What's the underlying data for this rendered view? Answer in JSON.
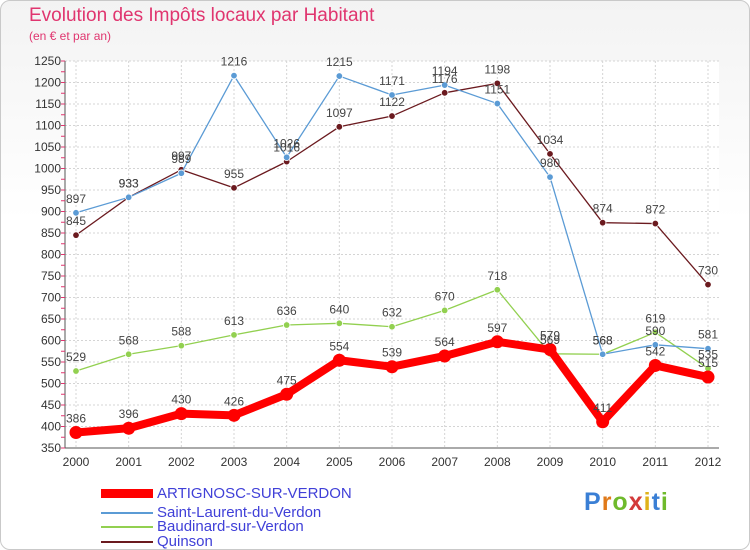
{
  "title": "Evolution des Impôts locaux par Habitant",
  "subtitle": "(en € et par an)",
  "logo": {
    "text": "Proxiti",
    "letter_colors": [
      "#3a7fd5",
      "#e07a1a",
      "#6fba2c",
      "#d33a3a",
      "#e0b31a",
      "#3a7fd5",
      "#6fba2c"
    ]
  },
  "chart_data": {
    "type": "line",
    "x": [
      "2000",
      "2001",
      "2002",
      "2003",
      "2004",
      "2005",
      "2006",
      "2007",
      "2008",
      "2009",
      "2010",
      "2011",
      "2012"
    ],
    "ylim": [
      350,
      1250
    ],
    "yticks": [
      350,
      400,
      450,
      500,
      550,
      600,
      650,
      700,
      750,
      800,
      850,
      900,
      950,
      1000,
      1050,
      1100,
      1150,
      1200,
      1250
    ],
    "grid": true,
    "legend_position": "bottom-left",
    "series": [
      {
        "name": "ARTIGNOSC-SUR-VERDON",
        "color": "#ff0000",
        "values": [
          386,
          396,
          430,
          426,
          475,
          554,
          539,
          564,
          597,
          579,
          411,
          542,
          515
        ]
      },
      {
        "name": "Saint-Laurent-du-Verdon",
        "color": "#5b9bd5",
        "values": [
          897,
          933,
          989,
          1216,
          1026,
          1215,
          1171,
          1194,
          1151,
          980,
          568,
          590,
          581
        ]
      },
      {
        "name": "Baudinard-sur-Verdon",
        "color": "#92d050",
        "values": [
          529,
          568,
          588,
          613,
          636,
          640,
          632,
          670,
          718,
          569,
          568,
          619,
          535
        ]
      },
      {
        "name": "Quinson",
        "color": "#6b1a1f",
        "values": [
          845,
          933,
          997,
          955,
          1016,
          1097,
          1122,
          1176,
          1198,
          1034,
          874,
          872,
          730
        ]
      }
    ]
  }
}
